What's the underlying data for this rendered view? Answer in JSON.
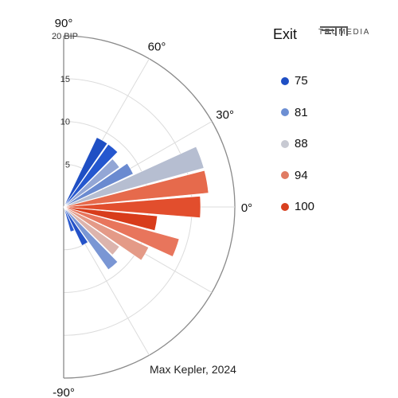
{
  "chart_data": {
    "type": "polar-bar",
    "unit_label": "BIP",
    "radial_ticks": [
      5,
      10,
      15,
      20
    ],
    "radial_max": 20,
    "angle_labels": [
      {
        "deg": 90,
        "text": "90°"
      },
      {
        "deg": 60,
        "text": "60°"
      },
      {
        "deg": 30,
        "text": "30°"
      },
      {
        "deg": 0,
        "text": "0°"
      },
      {
        "deg": -90,
        "text": "-90°"
      }
    ],
    "legend_title": "Exit",
    "legend": [
      {
        "label": "75",
        "color": "#1f4fc4"
      },
      {
        "label": "81",
        "color": "#6d8fd3"
      },
      {
        "label": "88",
        "color": "#c7c9d2"
      },
      {
        "label": "94",
        "color": "#e07b63"
      },
      {
        "label": "100",
        "color": "#d8401f"
      }
    ],
    "bars": [
      {
        "angle": 60,
        "value": 9.0,
        "color": "#1f4fc4"
      },
      {
        "angle": 50,
        "value": 9.0,
        "color": "#2557cf"
      },
      {
        "angle": 40,
        "value": 8.0,
        "color": "#93a6d5"
      },
      {
        "angle": 30,
        "value": 9.0,
        "color": "#6a8ad0"
      },
      {
        "angle": 20,
        "value": 17.0,
        "color": "#b6bed1"
      },
      {
        "angle": 10,
        "value": 17.0,
        "color": "#e66a4c"
      },
      {
        "angle": 0,
        "value": 16.0,
        "color": "#e24e2d"
      },
      {
        "angle": -10,
        "value": 11.0,
        "color": "#d83c1b"
      },
      {
        "angle": -20,
        "value": 14.0,
        "color": "#e8755c"
      },
      {
        "angle": -30,
        "value": 11.0,
        "color": "#e49a87"
      },
      {
        "angle": -40,
        "value": 8.0,
        "color": "#dcb4ad"
      },
      {
        "angle": -50,
        "value": 9.0,
        "color": "#7a96d4"
      },
      {
        "angle": -60,
        "value": 5.0,
        "color": "#2452c8"
      },
      {
        "angle": -70,
        "value": 3.0,
        "color": "#2a5ad0"
      }
    ]
  },
  "caption": "Max Kepler, 2024",
  "logo_text": "TRUMEDIA"
}
